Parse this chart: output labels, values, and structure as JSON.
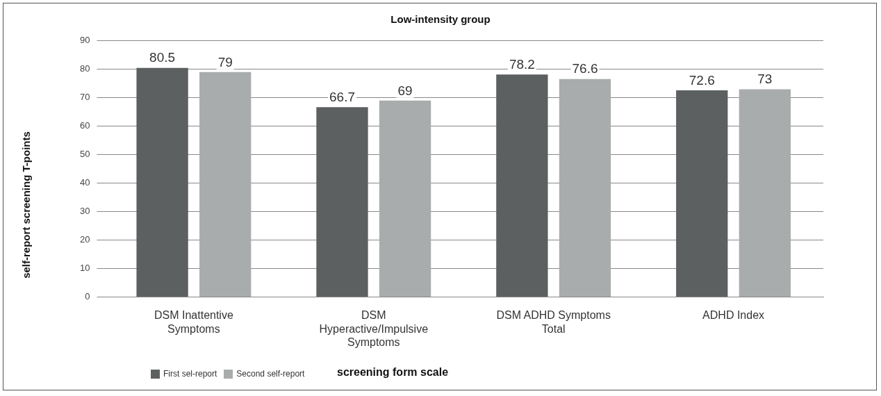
{
  "chart_data": {
    "type": "bar",
    "title": "Low-intensity group",
    "xlabel": "screening form scale",
    "ylabel": "self-report screening T-points",
    "categories": [
      "DSM Inattentive Symptoms",
      "DSM Hyperactive/Impulsive Symptoms",
      "DSM ADHD Symptoms Total",
      "ADHD Index"
    ],
    "series": [
      {
        "name": "First sel-report",
        "color": "#5c6061",
        "values": [
          80.5,
          66.7,
          78.2,
          72.6
        ]
      },
      {
        "name": "Second self-report",
        "color": "#a9acac",
        "values": [
          79,
          69,
          76.6,
          73
        ]
      }
    ],
    "ylim": [
      0,
      90
    ],
    "yticks": [
      0,
      10,
      20,
      30,
      40,
      50,
      60,
      70,
      80,
      90
    ],
    "grid": "y",
    "legend": "bottom left",
    "data_labels": true
  }
}
